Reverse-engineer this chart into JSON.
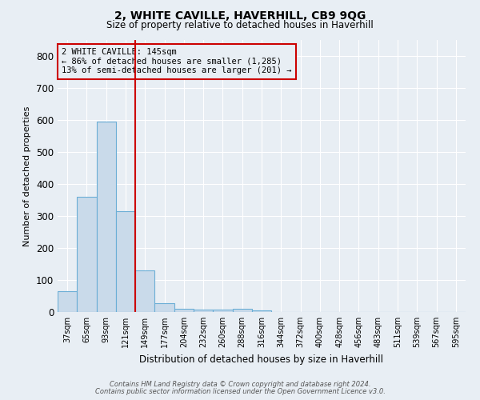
{
  "title": "2, WHITE CAVILLE, HAVERHILL, CB9 9QG",
  "subtitle": "Size of property relative to detached houses in Haverhill",
  "xlabel": "Distribution of detached houses by size in Haverhill",
  "ylabel": "Number of detached properties",
  "footnote1": "Contains HM Land Registry data © Crown copyright and database right 2024.",
  "footnote2": "Contains public sector information licensed under the Open Government Licence v3.0.",
  "bin_labels": [
    "37sqm",
    "65sqm",
    "93sqm",
    "121sqm",
    "149sqm",
    "177sqm",
    "204sqm",
    "232sqm",
    "260sqm",
    "288sqm",
    "316sqm",
    "344sqm",
    "372sqm",
    "400sqm",
    "428sqm",
    "456sqm",
    "483sqm",
    "511sqm",
    "539sqm",
    "567sqm",
    "595sqm"
  ],
  "bar_heights": [
    65,
    360,
    595,
    315,
    130,
    28,
    10,
    8,
    8,
    10,
    5,
    0,
    0,
    0,
    0,
    0,
    0,
    0,
    0,
    0,
    0
  ],
  "bar_color": "#c9daea",
  "bar_edge_color": "#6baed6",
  "property_line_x": 3.5,
  "property_line_color": "#cc0000",
  "annotation_text_line1": "2 WHITE CAVILLE: 145sqm",
  "annotation_text_line2": "← 86% of detached houses are smaller (1,285)",
  "annotation_text_line3": "13% of semi-detached houses are larger (201) →",
  "annotation_box_color": "#cc0000",
  "ylim": [
    0,
    850
  ],
  "yticks": [
    0,
    100,
    200,
    300,
    400,
    500,
    600,
    700,
    800
  ],
  "bg_color": "#e8eef4",
  "grid_color": "#ffffff"
}
